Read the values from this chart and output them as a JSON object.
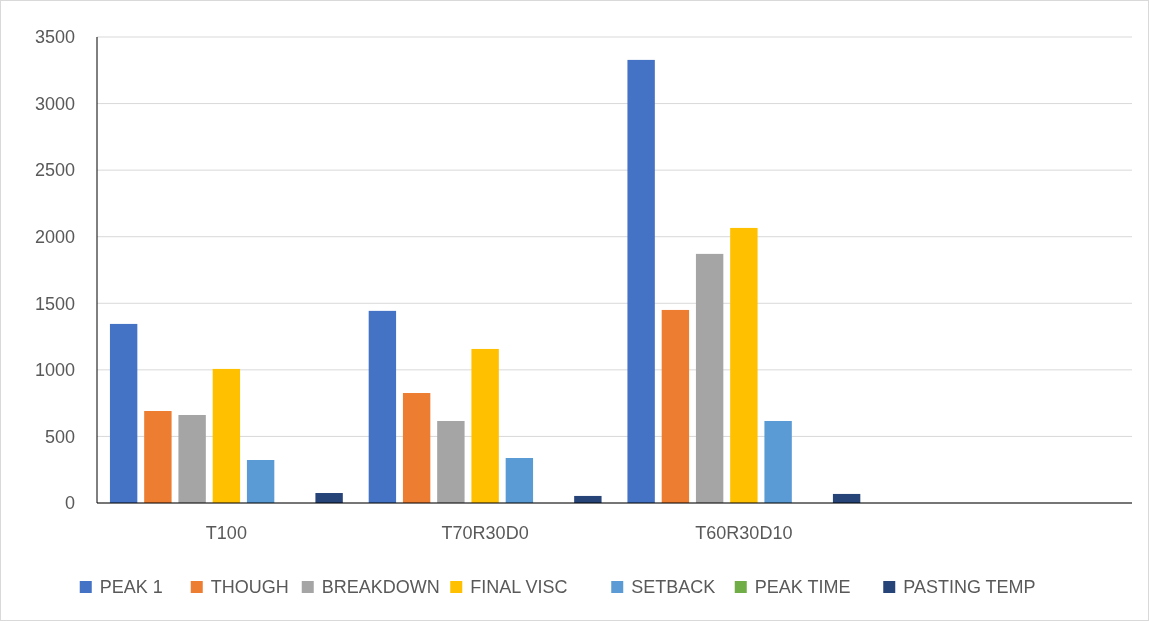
{
  "chart_data": {
    "type": "bar",
    "categories": [
      "T100",
      "T70R30D0",
      "T60R30D10",
      null
    ],
    "series": [
      {
        "name": "PEAK 1",
        "color": "#4472c4",
        "values": [
          1345,
          1443,
          3328,
          null
        ]
      },
      {
        "name": "THOUGH",
        "color": "#ed7d31",
        "values": [
          691,
          826,
          1450,
          null
        ]
      },
      {
        "name": "BREAKDOWN",
        "color": "#a5a5a5",
        "values": [
          661,
          616,
          1871,
          null
        ]
      },
      {
        "name": "FINAL VISC",
        "color": "#ffc000",
        "values": [
          1007,
          1157,
          2066,
          null
        ]
      },
      {
        "name": "SETBACK",
        "color": "#5b9bd5",
        "values": [
          323,
          338,
          616,
          null
        ]
      },
      {
        "name": "PEAK TIME",
        "color": "#70ad47",
        "values": [
          null,
          null,
          null,
          null
        ]
      },
      {
        "name": "PASTING TEMP",
        "color": "#264478",
        "values": [
          75,
          53,
          68,
          null
        ]
      }
    ],
    "ylim": [
      0,
      3500
    ],
    "yticks": [
      0,
      500,
      1000,
      1500,
      2000,
      2500,
      3000,
      3500
    ],
    "grid": "y",
    "legend": "bottom"
  }
}
